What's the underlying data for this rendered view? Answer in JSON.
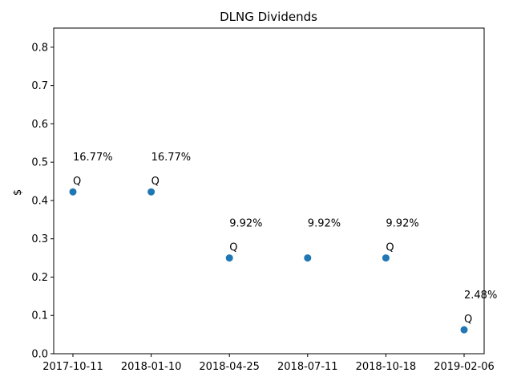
{
  "chart_data": {
    "type": "scatter",
    "title": "DLNG Dividends",
    "xlabel": "",
    "ylabel": "$",
    "ylim": [
      0,
      0.85
    ],
    "yticks": [
      "0.0",
      "0.1",
      "0.2",
      "0.3",
      "0.4",
      "0.5",
      "0.6",
      "0.7",
      "0.8"
    ],
    "x": [
      "2017-10-11",
      "2018-01-10",
      "2018-04-25",
      "2018-07-11",
      "2018-10-18",
      "2019-02-06"
    ],
    "values": [
      0.4225,
      0.4225,
      0.25,
      0.25,
      0.25,
      0.0625
    ],
    "point_labels": [
      "Q",
      "Q",
      "Q",
      "",
      "Q",
      "Q"
    ],
    "pct_labels": [
      "16.77%",
      "16.77%",
      "9.92%",
      "9.92%",
      "9.92%",
      "2.48%"
    ],
    "point_color": "#1f77b4",
    "grid": false
  }
}
